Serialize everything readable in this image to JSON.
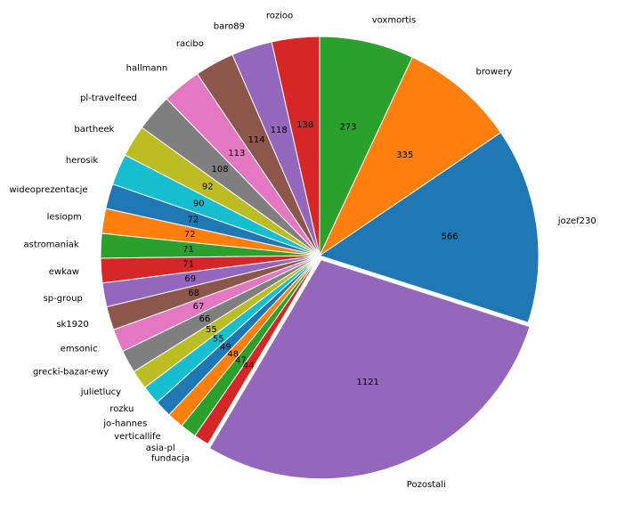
{
  "chart_data": {
    "type": "pie",
    "title": "",
    "start_angle_deg": 90,
    "direction": "counterclockwise",
    "explode_last": true,
    "categories": [
      "rozioo",
      "baro89",
      "racibo",
      "hallmann",
      "pl-travelfeed",
      "bartheek",
      "herosik",
      "wideoprezentacje",
      "lesiopm",
      "astromaniak",
      "ewkaw",
      "sp-group",
      "sk1920",
      "emsonic",
      "grecki-bazar-ewy",
      "julietlucy",
      "rozku",
      "jo-hannes",
      "verticallife",
      "asia-pl",
      "fundacja",
      "Pozostali",
      "jozef230",
      "browery",
      "voxmortis"
    ],
    "values": [
      138,
      118,
      114,
      113,
      108,
      92,
      90,
      72,
      72,
      71,
      71,
      69,
      68,
      67,
      66,
      55,
      55,
      49,
      48,
      47,
      44,
      1121,
      566,
      335,
      273
    ],
    "colors": [
      "#d62728",
      "#9467bd",
      "#8c564b",
      "#e377c2",
      "#7f7f7f",
      "#bcbd22",
      "#17becf",
      "#1f77b4",
      "#ff7f0e",
      "#2ca02c",
      "#d62728",
      "#9467bd",
      "#8c564b",
      "#e377c2",
      "#7f7f7f",
      "#bcbd22",
      "#17becf",
      "#1f77b4",
      "#ff7f0e",
      "#2ca02c",
      "#d62728",
      "#9467bd",
      "#1f77b4",
      "#ff7f0e",
      "#2ca02c"
    ]
  }
}
